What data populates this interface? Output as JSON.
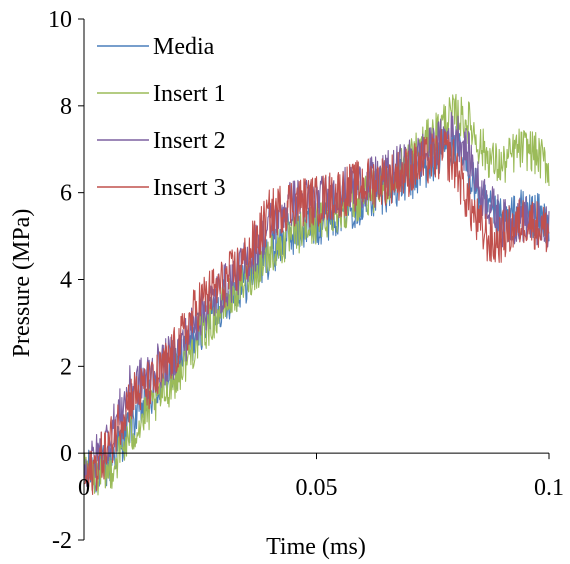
{
  "chart_data": {
    "type": "line",
    "title": "",
    "xlabel": "Time (ms)",
    "ylabel": "Pressure (MPa)",
    "xlim": [
      0,
      0.1
    ],
    "ylim": [
      -2,
      10
    ],
    "x_ticks": [
      0,
      0.05,
      0.1
    ],
    "x_tick_labels": [
      "0",
      "0.05",
      "0.1"
    ],
    "y_ticks": [
      -2,
      0,
      2,
      4,
      6,
      8,
      10
    ],
    "y_tick_labels": [
      "-2",
      "0",
      "2",
      "4",
      "6",
      "8",
      "10"
    ],
    "grid": false,
    "legend_position": "top-left",
    "series": [
      {
        "name": "Media",
        "color": "#4a7ebb",
        "noise": 0.55,
        "points": [
          [
            0,
            -0.5
          ],
          [
            0.005,
            -0.3
          ],
          [
            0.01,
            0.7
          ],
          [
            0.015,
            1.4
          ],
          [
            0.02,
            2.0
          ],
          [
            0.025,
            2.9
          ],
          [
            0.03,
            3.5
          ],
          [
            0.035,
            4.0
          ],
          [
            0.04,
            4.6
          ],
          [
            0.045,
            5.1
          ],
          [
            0.05,
            5.3
          ],
          [
            0.055,
            5.6
          ],
          [
            0.06,
            5.8
          ],
          [
            0.065,
            6.1
          ],
          [
            0.07,
            6.3
          ],
          [
            0.075,
            6.7
          ],
          [
            0.078,
            7.1
          ],
          [
            0.08,
            7.0
          ],
          [
            0.083,
            6.5
          ],
          [
            0.085,
            5.9
          ],
          [
            0.088,
            5.4
          ],
          [
            0.09,
            5.3
          ],
          [
            0.095,
            5.6
          ],
          [
            0.1,
            5.3
          ]
        ]
      },
      {
        "name": "Insert 1",
        "color": "#9bbb59",
        "noise": 0.5,
        "points": [
          [
            0,
            -0.5
          ],
          [
            0.005,
            -0.5
          ],
          [
            0.01,
            0.4
          ],
          [
            0.015,
            1.1
          ],
          [
            0.02,
            1.8
          ],
          [
            0.025,
            2.7
          ],
          [
            0.03,
            3.4
          ],
          [
            0.035,
            4.0
          ],
          [
            0.04,
            4.6
          ],
          [
            0.045,
            5.0
          ],
          [
            0.05,
            5.3
          ],
          [
            0.055,
            5.6
          ],
          [
            0.06,
            5.9
          ],
          [
            0.065,
            6.2
          ],
          [
            0.07,
            6.8
          ],
          [
            0.075,
            7.3
          ],
          [
            0.078,
            7.7
          ],
          [
            0.08,
            7.8
          ],
          [
            0.083,
            7.6
          ],
          [
            0.085,
            7.1
          ],
          [
            0.088,
            6.7
          ],
          [
            0.09,
            6.6
          ],
          [
            0.093,
            7.0
          ],
          [
            0.096,
            7.0
          ],
          [
            0.1,
            6.6
          ]
        ]
      },
      {
        "name": "Insert 2",
        "color": "#7d60a0",
        "noise": 0.55,
        "points": [
          [
            0,
            -0.5
          ],
          [
            0.005,
            0.3
          ],
          [
            0.01,
            1.5
          ],
          [
            0.015,
            1.9
          ],
          [
            0.02,
            2.3
          ],
          [
            0.025,
            3.2
          ],
          [
            0.03,
            3.8
          ],
          [
            0.035,
            4.4
          ],
          [
            0.04,
            5.3
          ],
          [
            0.045,
            5.8
          ],
          [
            0.05,
            5.8
          ],
          [
            0.055,
            6.0
          ],
          [
            0.06,
            6.2
          ],
          [
            0.065,
            6.4
          ],
          [
            0.07,
            6.7
          ],
          [
            0.075,
            7.0
          ],
          [
            0.078,
            7.3
          ],
          [
            0.08,
            7.4
          ],
          [
            0.083,
            6.8
          ],
          [
            0.085,
            6.1
          ],
          [
            0.088,
            5.6
          ],
          [
            0.09,
            5.3
          ],
          [
            0.095,
            5.4
          ],
          [
            0.1,
            5.1
          ]
        ]
      },
      {
        "name": "Insert 3",
        "color": "#c0504d",
        "noise": 0.6,
        "points": [
          [
            0,
            -0.7
          ],
          [
            0.005,
            0.1
          ],
          [
            0.01,
            1.3
          ],
          [
            0.015,
            1.6
          ],
          [
            0.02,
            2.4
          ],
          [
            0.025,
            3.5
          ],
          [
            0.03,
            3.9
          ],
          [
            0.035,
            4.5
          ],
          [
            0.04,
            5.5
          ],
          [
            0.045,
            5.8
          ],
          [
            0.05,
            5.8
          ],
          [
            0.055,
            6.0
          ],
          [
            0.06,
            6.2
          ],
          [
            0.065,
            6.3
          ],
          [
            0.07,
            6.5
          ],
          [
            0.075,
            6.8
          ],
          [
            0.078,
            6.9
          ],
          [
            0.08,
            6.6
          ],
          [
            0.083,
            5.7
          ],
          [
            0.085,
            5.2
          ],
          [
            0.088,
            4.8
          ],
          [
            0.09,
            5.0
          ],
          [
            0.095,
            5.4
          ],
          [
            0.1,
            5.1
          ]
        ]
      }
    ]
  }
}
